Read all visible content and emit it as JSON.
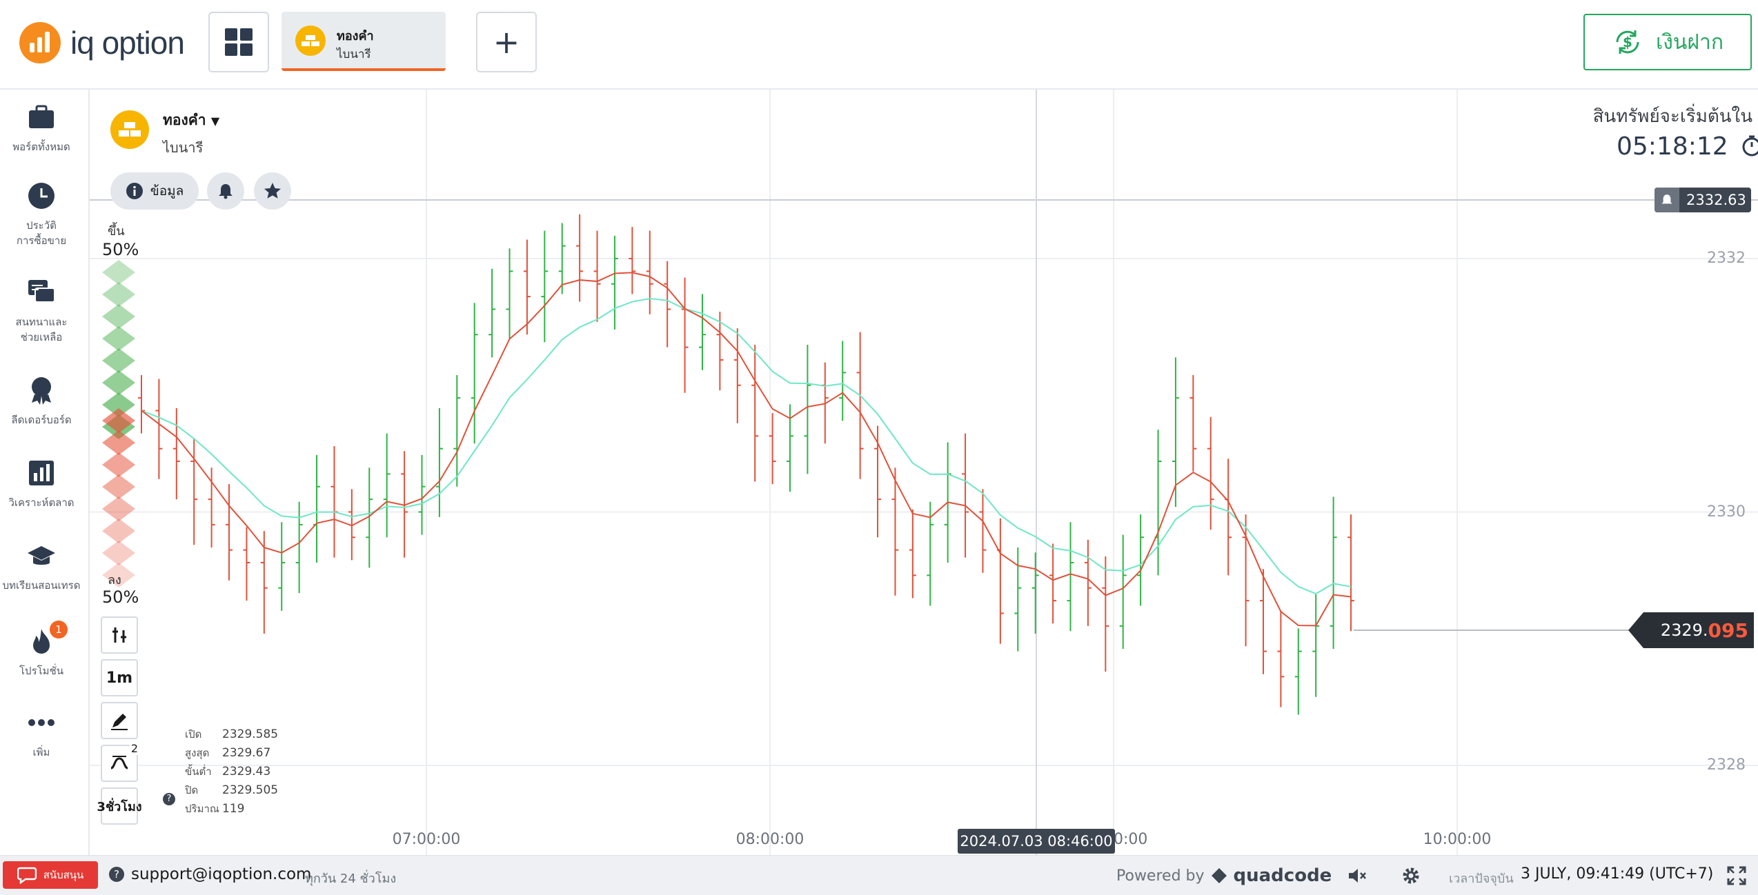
{
  "brand": {
    "logo_text": "iq option"
  },
  "header": {
    "asset_tab": {
      "name": "ทองคำ",
      "type": "ไบนารี"
    },
    "add_tab_label": "+",
    "deposit_label": "เงินฝาก"
  },
  "sidebar": {
    "items": [
      {
        "label": "พอร์ตทั้งหมด",
        "icon": "briefcase-icon"
      },
      {
        "label": "ประวัติ\nการซื้อขาย",
        "icon": "clock-icon"
      },
      {
        "label": "สนทนาและ\nช่วยเหลือ",
        "icon": "chat-icon"
      },
      {
        "label": "ลีดเดอร์บอร์ด",
        "icon": "award-icon"
      },
      {
        "label": "วิเคราะห์ตลาด",
        "icon": "bar-chart-icon"
      },
      {
        "label": "บทเรียนสอนเทรด",
        "icon": "graduation-cap-icon"
      },
      {
        "label": "โปรโมชั่น",
        "icon": "flame-icon",
        "badge": "1"
      },
      {
        "label": "เพิ่ม",
        "icon": "more-dots-icon"
      }
    ]
  },
  "asset": {
    "name": "ทองคำ",
    "type": "ไบนารี",
    "info_label": "ข้อมูล"
  },
  "countdown": {
    "label": "สินทรัพย์จะเริ่มต้นใน",
    "time": "05:18:12"
  },
  "price_alert": {
    "value": "2332.63"
  },
  "current_price": {
    "main": "2329.",
    "highlight": "095"
  },
  "crosshair_time": "2024.07.03 08:46:00",
  "sentiment": {
    "up_label": "ขึ้น",
    "up_pct": "50%",
    "down_label": "ลง",
    "down_pct": "50%"
  },
  "tools": {
    "timeframe": "1m",
    "indicator_count": "2",
    "period": "3ชั่วโมง"
  },
  "ohlc": {
    "open_label": "เปิด",
    "open": "2329.585",
    "high_label": "สูงสุด",
    "high": "2329.67",
    "low_label": "ขั้นต่ำ",
    "low": "2329.43",
    "close_label": "ปิด",
    "close": "2329.505",
    "volume_label": "ปริมาณ",
    "volume": "119"
  },
  "footer": {
    "support_label": "สนับสนุน",
    "email": "support@iqoption.com",
    "hours": "ทุกวัน 24 ชั่วโมง",
    "powered_by": "Powered by",
    "powered_brand": "quadcode",
    "time_label": "เวลาปัจจุบัน",
    "time": "3 JULY, 09:41:49 (UTC+7)"
  },
  "colors": {
    "accent": "#f26522",
    "deposit": "#25a65f",
    "bull": "#2fb344",
    "bear": "#e0513a",
    "ma_fast": "#e0513a",
    "ma_slow": "#6ee7c5"
  },
  "chart_data": {
    "type": "candlestick",
    "ylim": [
      2327.5,
      2333.0
    ],
    "yticks": [
      "2332",
      "2330",
      "2328"
    ],
    "xticks": [
      "07:00:00",
      "08:00:00",
      "09:00:00",
      "10:00:00"
    ],
    "x_range": [
      "06:00",
      "10:30"
    ],
    "series": [
      {
        "role": "price",
        "close": [
          2330.8,
          2330.5,
          2330.4,
          2330.1,
          2329.9,
          2329.7,
          2329.6,
          2329.4,
          2329.6,
          2329.9,
          2330.2,
          2330.0,
          2329.8,
          2330.1,
          2330.3,
          2330.0,
          2330.2,
          2330.5,
          2330.9,
          2331.4,
          2331.6,
          2331.9,
          2331.7,
          2331.9,
          2332.1,
          2331.9,
          2331.8,
          2332.0,
          2331.9,
          2331.8,
          2331.6,
          2331.3,
          2331.4,
          2331.2,
          2331.0,
          2330.6,
          2330.4,
          2330.6,
          2331.0,
          2330.9,
          2331.1,
          2330.5,
          2330.1,
          2329.7,
          2329.5,
          2329.9,
          2330.3,
          2330.0,
          2329.7,
          2329.2,
          2329.4,
          2329.5,
          2329.3,
          2329.6,
          2329.4,
          2329.1,
          2329.5,
          2329.8,
          2330.4,
          2330.9,
          2330.5,
          2330.1,
          2329.8,
          2329.3,
          2328.9,
          2328.7,
          2328.9,
          2329.1,
          2329.8,
          2329.3
        ]
      }
    ]
  }
}
